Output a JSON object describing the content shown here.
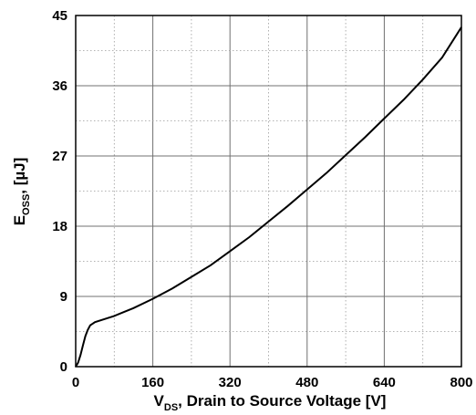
{
  "chart_data": {
    "type": "line",
    "xlabel": {
      "main": "V",
      "sub": "DS",
      "rest": ", Drain to Source Voltage [V]"
    },
    "ylabel": {
      "main": "E",
      "sub": "OSS",
      "rest": ", [µJ]"
    },
    "xlim": [
      0,
      800
    ],
    "ylim": [
      0,
      45
    ],
    "x_ticks": [
      "0",
      "160",
      "320",
      "480",
      "640",
      "800"
    ],
    "y_ticks": [
      "0",
      "9",
      "18",
      "27",
      "36",
      "45"
    ],
    "grid": true,
    "series": [
      {
        "x": [
          0,
          5,
          10,
          15,
          20,
          25,
          30,
          40,
          60,
          80,
          100,
          120,
          160,
          200,
          240,
          280,
          320,
          360,
          400,
          440,
          480,
          520,
          560,
          600,
          640,
          680,
          720,
          760,
          800
        ],
        "y": [
          0,
          0.5,
          1.5,
          2.7,
          3.9,
          4.7,
          5.3,
          5.7,
          6.1,
          6.5,
          7.0,
          7.5,
          8.7,
          10.0,
          11.5,
          13.0,
          14.8,
          16.6,
          18.6,
          20.6,
          22.7,
          24.8,
          27.1,
          29.4,
          31.8,
          34.2,
          36.8,
          39.6,
          43.5
        ]
      }
    ]
  }
}
